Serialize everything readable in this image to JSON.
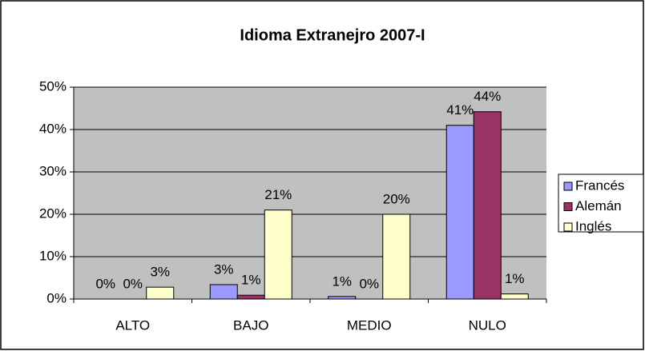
{
  "chart_data": {
    "type": "bar",
    "title": "Idioma Extranejro 2007-I",
    "categories": [
      "ALTO",
      "BAJO",
      "MEDIO",
      "NULO"
    ],
    "series": [
      {
        "name": "Francés",
        "color": "#9999ff",
        "values": [
          0,
          3.4,
          0.6,
          41
        ],
        "value_labels": [
          "0%",
          "3%",
          "1%",
          "41%"
        ]
      },
      {
        "name": "Alemán",
        "color": "#993366",
        "values": [
          0,
          0.9,
          0,
          44.2
        ],
        "value_labels": [
          "0%",
          "1%",
          "0%",
          "44%"
        ]
      },
      {
        "name": "Inglés",
        "color": "#ffffcc",
        "values": [
          2.8,
          21,
          20,
          1.2
        ],
        "value_labels": [
          "3%",
          "21%",
          "20%",
          "1%"
        ]
      }
    ],
    "ylim": [
      0,
      50
    ],
    "yticks": [
      {
        "value": 0,
        "label": "0%"
      },
      {
        "value": 10,
        "label": "10%"
      },
      {
        "value": 20,
        "label": "20%"
      },
      {
        "value": 30,
        "label": "30%"
      },
      {
        "value": 40,
        "label": "40%"
      },
      {
        "value": 50,
        "label": "50%"
      }
    ],
    "grid": true,
    "legend": "right"
  }
}
